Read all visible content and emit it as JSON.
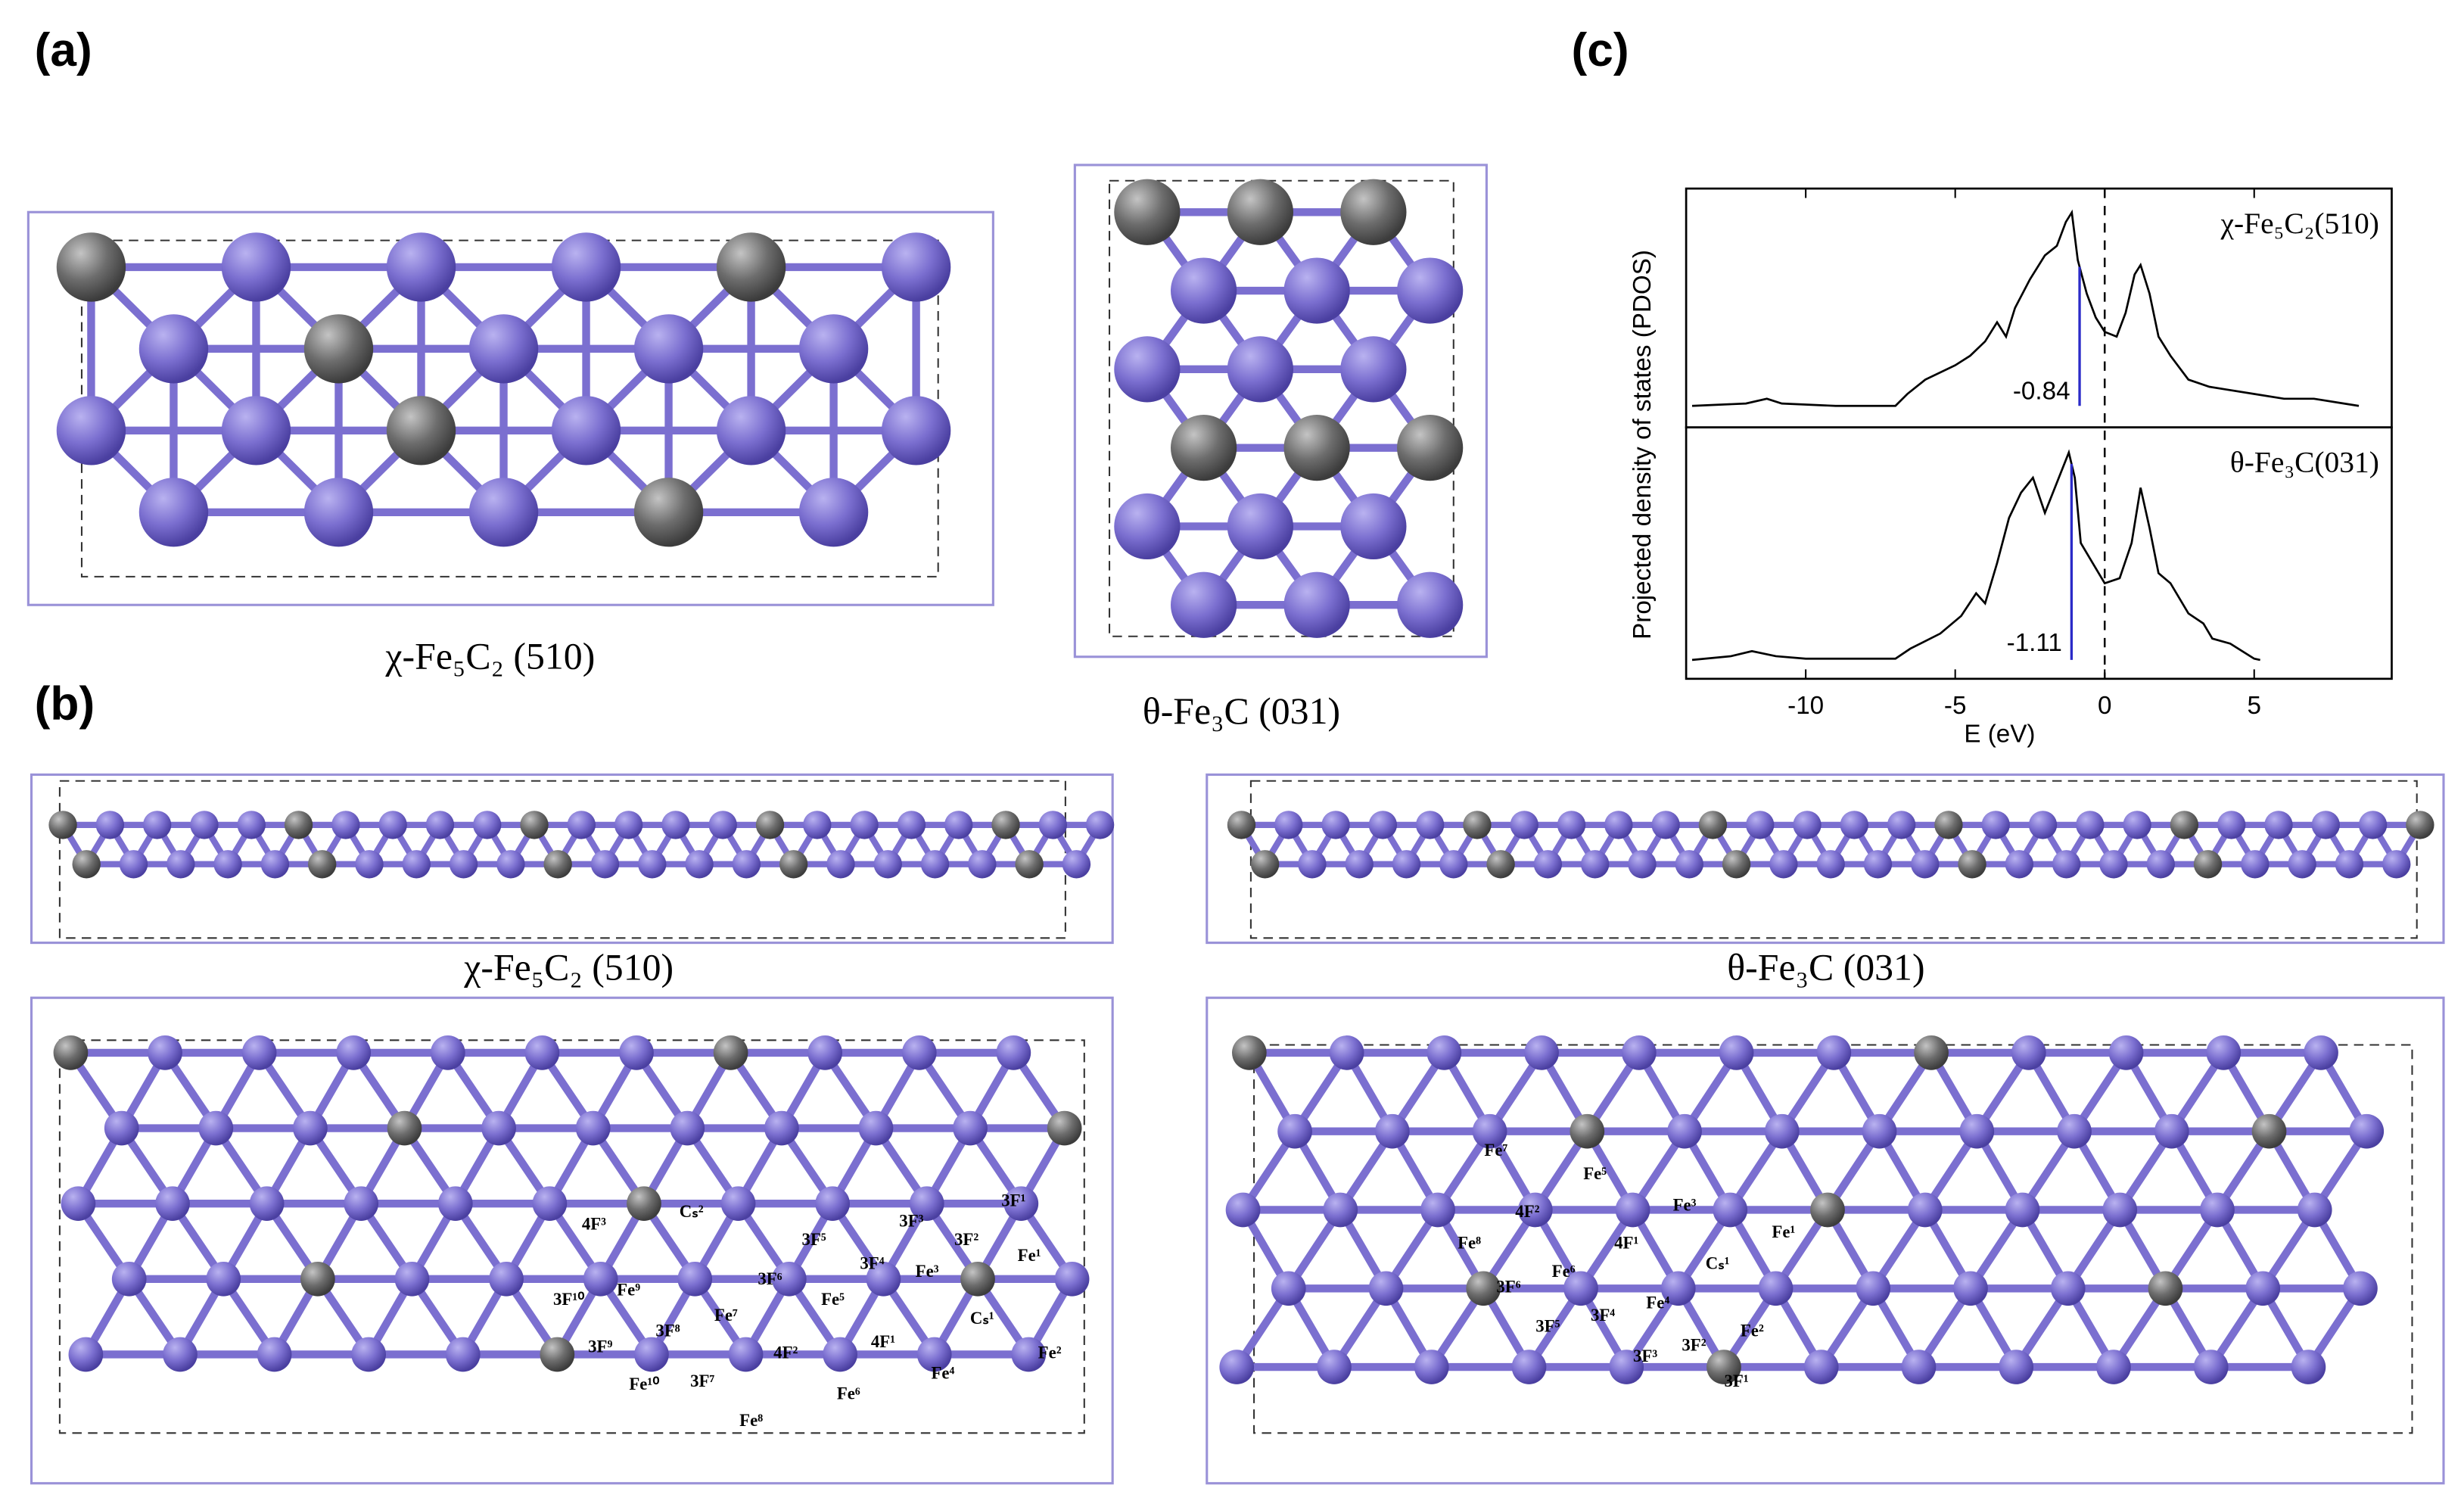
{
  "panel_labels": {
    "a": "(a)",
    "b": "(b)",
    "c": "(c)"
  },
  "structures": {
    "a_chi": "χ-Fe₅C₂ (510)",
    "a_theta": "θ-Fe₃C (031)",
    "b_chi": "χ-Fe₅C₂ (510)",
    "b_theta": "θ-Fe₃C (031)"
  },
  "site_labels": {
    "chi": [
      "Fe⁹",
      "3F¹⁰",
      "Cₛ²",
      "4F³",
      "3F⁵",
      "3F³",
      "3F¹",
      "3F²",
      "3F⁴",
      "Fe³",
      "Fe¹",
      "3F⁶",
      "Fe⁵",
      "Fe⁷",
      "3F⁸",
      "3F⁹",
      "4F²",
      "4F¹",
      "Cₛ¹",
      "Fe²",
      "3F⁷",
      "Fe¹⁰",
      "Fe⁴",
      "Fe⁶",
      "Fe⁸"
    ],
    "theta": [
      "Fe⁷",
      "Fe⁵",
      "4F²",
      "Fe³",
      "Fe¹",
      "4F¹",
      "Fe⁸",
      "Cₛ¹",
      "Fe⁶",
      "3F⁶",
      "Fe⁴",
      "3F⁴",
      "3F⁵",
      "Fe²",
      "3F²",
      "3F³",
      "3F¹"
    ]
  },
  "chart_data": [
    {
      "type": "line",
      "title": "χ-Fe₅C₂(510)",
      "y_label": "Projected density of states (PDOS)",
      "xlim": [
        -14,
        9.6
      ],
      "ylim": [
        0,
        10
      ],
      "x": [
        -13.8,
        -12,
        -11.3,
        -10.8,
        -9,
        -7,
        -6.6,
        -6,
        -5,
        -4.5,
        -4,
        -3.6,
        -3.3,
        -3,
        -2.5,
        -2,
        -1.6,
        -1.3,
        -1.1,
        -0.9,
        -0.6,
        -0.3,
        0,
        0.4,
        0.7,
        1.0,
        1.2,
        1.5,
        1.8,
        2.2,
        2.8,
        3.5,
        4,
        5,
        6,
        7,
        8,
        8.5
      ],
      "series": [
        {
          "color": "#000000",
          "values": [
            0.9,
            1.0,
            1.2,
            1.0,
            0.9,
            0.9,
            1.4,
            2.0,
            2.6,
            3.0,
            3.6,
            4.4,
            3.8,
            5.0,
            6.2,
            7.2,
            7.6,
            8.6,
            9.0,
            7.0,
            5.6,
            4.6,
            4.0,
            3.8,
            4.8,
            6.4,
            6.8,
            5.6,
            3.8,
            3.0,
            2.0,
            1.7,
            1.6,
            1.4,
            1.2,
            1.2,
            1.0,
            0.9
          ]
        }
      ],
      "d_band_center": -0.84,
      "d_band_color": "#2b2bc8"
    },
    {
      "type": "line",
      "title": "θ-Fe₃C(031)",
      "x_label": "E (eV)",
      "xlim": [
        -14,
        9.6
      ],
      "xticks": [
        -10,
        -5,
        0,
        5
      ],
      "ylim": [
        0,
        10
      ],
      "x": [
        -13.8,
        -12.5,
        -11.8,
        -11,
        -10,
        -9,
        -7,
        -6.5,
        -5.5,
        -4.8,
        -4.3,
        -4,
        -3.6,
        -3.2,
        -2.8,
        -2.4,
        -2,
        -1.6,
        -1.2,
        -1.0,
        -0.8,
        -0.4,
        0,
        0.5,
        0.9,
        1.2,
        1.5,
        1.8,
        2.2,
        2.8,
        3.3,
        3.6,
        4.2,
        5.0,
        5.2
      ],
      "series": [
        {
          "color": "#000000",
          "values": [
            0.75,
            0.9,
            1.1,
            0.9,
            0.8,
            0.8,
            0.8,
            1.2,
            1.8,
            2.5,
            3.4,
            3.0,
            4.6,
            6.4,
            7.4,
            8.0,
            6.6,
            7.8,
            9.0,
            8.0,
            5.4,
            4.6,
            3.8,
            4.0,
            5.4,
            7.6,
            6.0,
            4.2,
            3.8,
            2.6,
            2.2,
            1.6,
            1.4,
            0.8,
            0.75
          ]
        }
      ],
      "d_band_center": -1.11,
      "d_band_color": "#2b2bc8"
    }
  ]
}
